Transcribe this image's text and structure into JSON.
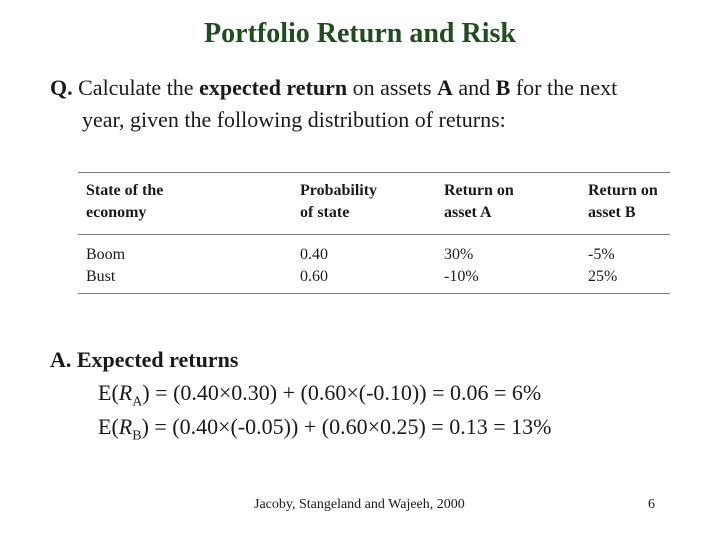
{
  "slide": {
    "title": "Portfolio Return and Risk",
    "question": {
      "prefix": "Q.",
      "line1_a": " Calculate the ",
      "line1_bold": "expected return",
      "line1_b": " on assets ",
      "asset_a": "A",
      "line1_c": " and ",
      "asset_b": "B",
      "line1_d": " for the next",
      "line2": "year, given the following distribution of returns:"
    },
    "table": {
      "headers": [
        "State of the\neconomy",
        "Probability\nof state",
        "Return on\nasset A",
        "Return on\nasset B"
      ],
      "columns": [
        "Boom\nBust",
        "0.40\n0.60",
        "30%\n-10%",
        "-5%\n25%"
      ]
    },
    "answer": {
      "heading": "A. Expected returns",
      "eq_a_pre": "E(",
      "eq_a_var": "R",
      "eq_a_sub": "A",
      "eq_a_post": ") = (0.40×0.30) + (0.60×(-0.10)) = 0.06 = 6%",
      "eq_b_pre": "E(",
      "eq_b_var": "R",
      "eq_b_sub": "B",
      "eq_b_post": ") = (0.40×(-0.05)) + (0.60×0.25) = 0.13 = 13%"
    },
    "footer": "Jacoby, Stangeland and Wajeeh, 2000",
    "page_number": "6"
  }
}
